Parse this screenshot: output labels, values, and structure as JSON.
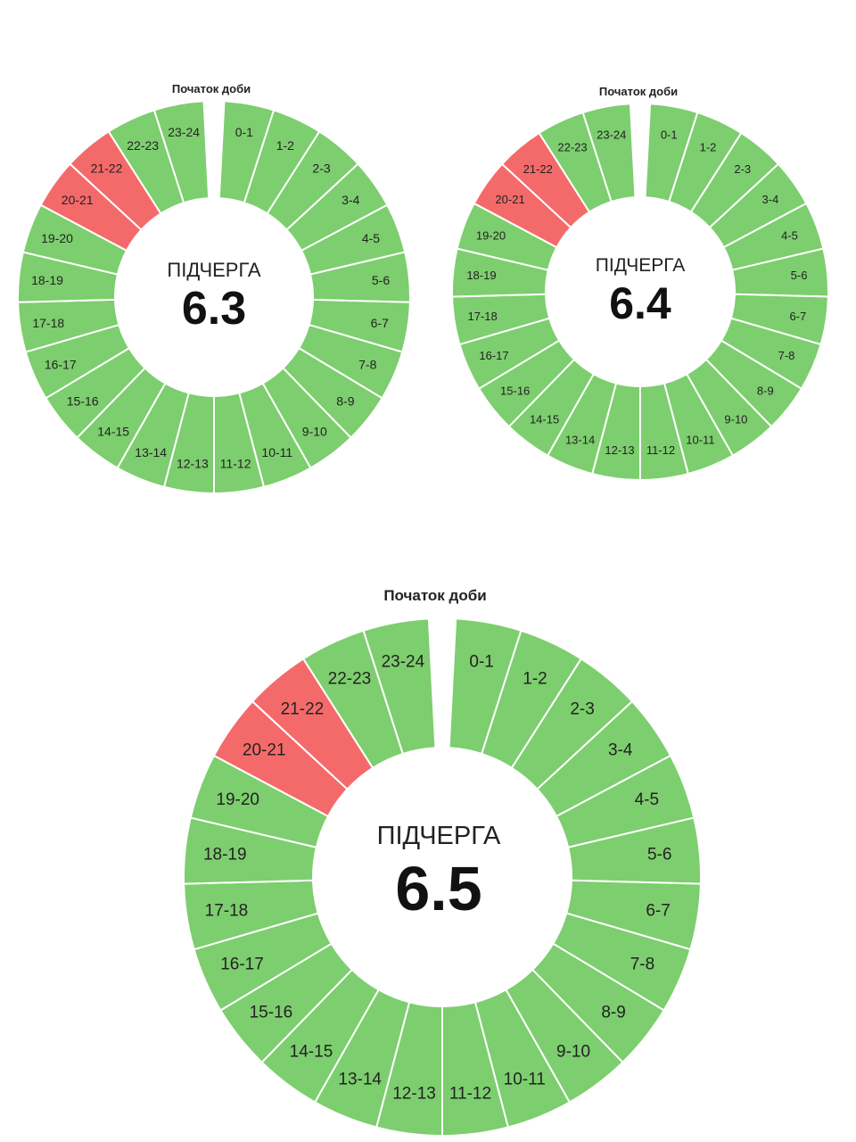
{
  "colors": {
    "on": "#7dce6e",
    "off": "#f46a6a",
    "background": "#ffffff",
    "divider": "#ffffff"
  },
  "charts": [
    {
      "start_label": "Початок доби",
      "queue_word": "ПІДЧЕРГА",
      "queue_number": "6.3",
      "hours": [
        "0-1",
        "1-2",
        "2-3",
        "3-4",
        "4-5",
        "5-6",
        "6-7",
        "7-8",
        "8-9",
        "9-10",
        "10-11",
        "11-12",
        "12-13",
        "13-14",
        "14-15",
        "15-16",
        "16-17",
        "17-18",
        "18-19",
        "19-20",
        "20-21",
        "21-22",
        "22-23",
        "23-24"
      ],
      "outage_hours": [
        "20-21",
        "21-22"
      ]
    },
    {
      "start_label": "Початок доби",
      "queue_word": "ПІДЧЕРГА",
      "queue_number": "6.4",
      "hours": [
        "0-1",
        "1-2",
        "2-3",
        "3-4",
        "4-5",
        "5-6",
        "6-7",
        "7-8",
        "8-9",
        "9-10",
        "10-11",
        "11-12",
        "12-13",
        "13-14",
        "14-15",
        "15-16",
        "16-17",
        "17-18",
        "18-19",
        "19-20",
        "20-21",
        "21-22",
        "22-23",
        "23-24"
      ],
      "outage_hours": [
        "20-21",
        "21-22"
      ]
    },
    {
      "start_label": "Початок доби",
      "queue_word": "ПІДЧЕРГА",
      "queue_number": "6.5",
      "hours": [
        "0-1",
        "1-2",
        "2-3",
        "3-4",
        "4-5",
        "5-6",
        "6-7",
        "7-8",
        "8-9",
        "9-10",
        "10-11",
        "11-12",
        "12-13",
        "13-14",
        "14-15",
        "15-16",
        "16-17",
        "17-18",
        "18-19",
        "19-20",
        "20-21",
        "21-22",
        "22-23",
        "23-24"
      ],
      "outage_hours": [
        "20-21",
        "21-22"
      ]
    }
  ]
}
